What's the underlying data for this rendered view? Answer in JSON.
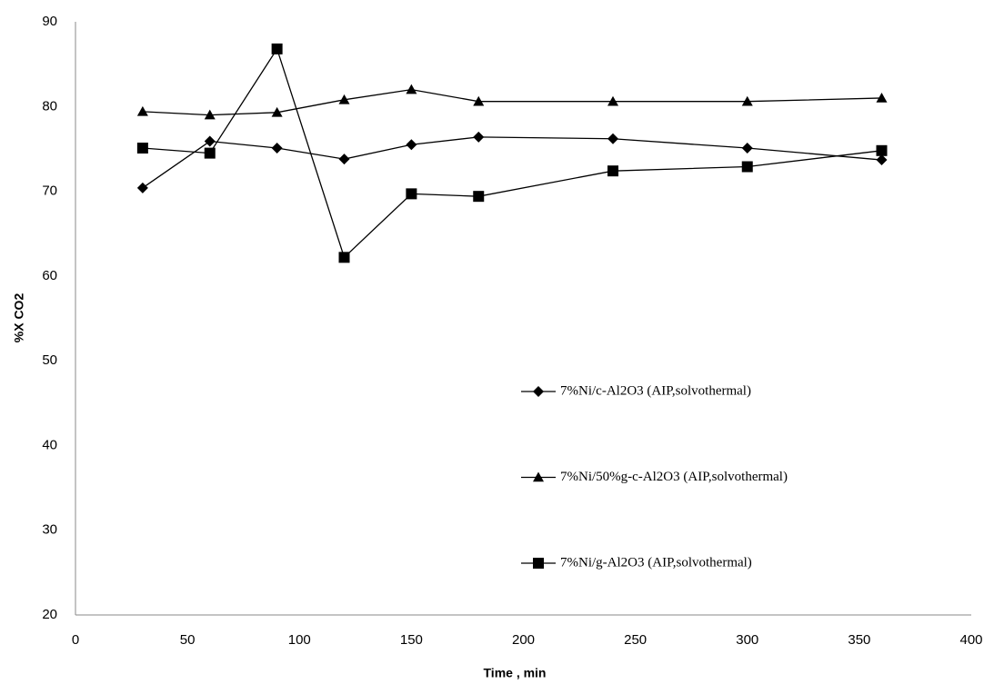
{
  "chart_data": {
    "type": "line",
    "x_label": "Time , min",
    "y_label": "%X CO2",
    "xlim": [
      0,
      400
    ],
    "xticks": [
      0,
      50,
      100,
      150,
      200,
      250,
      300,
      350,
      400
    ],
    "ylim": [
      20,
      90
    ],
    "yticks": [
      20,
      30,
      40,
      50,
      60,
      70,
      80,
      90
    ],
    "grid": false,
    "series": [
      {
        "name": "7%Ni/c-Al2O3 (AIP,solvothermal)",
        "color": "#000000",
        "marker": "diamond",
        "x": [
          30,
          60,
          90,
          120,
          150,
          180,
          240,
          300,
          360
        ],
        "values": [
          70.4,
          75.9,
          75.1,
          73.8,
          75.5,
          76.4,
          76.2,
          75.1,
          73.7
        ]
      },
      {
        "name": "7%Ni/50%g-c-Al2O3  (AIP,solvothermal)",
        "color": "#000000",
        "marker": "triangle",
        "x": [
          30,
          60,
          90,
          120,
          150,
          180,
          240,
          300,
          360
        ],
        "values": [
          79.4,
          79.0,
          79.3,
          80.8,
          82.0,
          80.6,
          80.6,
          80.6,
          81.0
        ]
      },
      {
        "name": "7%Ni/g-Al2O3  (AIP,solvothermal)",
        "color": "#000000",
        "marker": "square",
        "x": [
          30,
          60,
          90,
          120,
          150,
          180,
          240,
          300,
          360
        ],
        "values": [
          75.1,
          74.5,
          86.8,
          62.2,
          69.7,
          69.4,
          72.4,
          72.9,
          74.8
        ]
      }
    ]
  }
}
